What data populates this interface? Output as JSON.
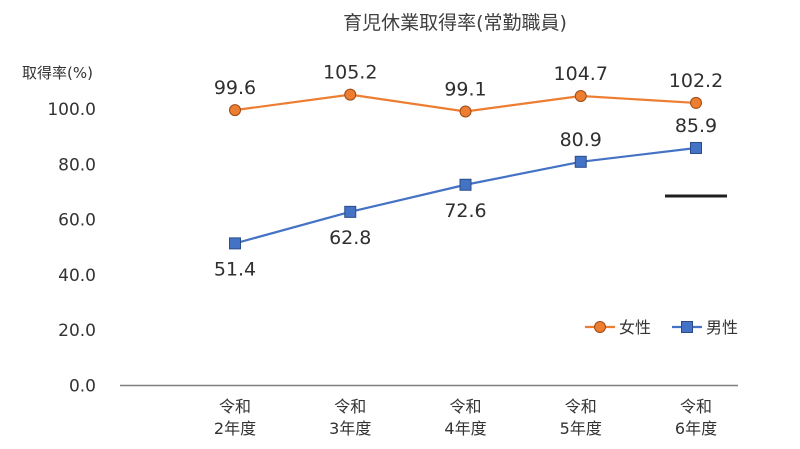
{
  "chart_data": {
    "type": "line",
    "title": "育児休業取得率(常勤職員)",
    "ylabel": "取得率(%)",
    "xlabel": "",
    "ylim": [
      0,
      100
    ],
    "yticks": [
      "0.0",
      "20.0",
      "40.0",
      "60.0",
      "80.0",
      "100.0"
    ],
    "categories": [
      [
        "令和",
        "2年度"
      ],
      [
        "令和",
        "3年度"
      ],
      [
        "令和",
        "4年度"
      ],
      [
        "令和",
        "5年度"
      ],
      [
        "令和",
        "6年度"
      ]
    ],
    "series": [
      {
        "name": "女性",
        "values": [
          99.6,
          105.2,
          99.1,
          104.7,
          102.2
        ],
        "labels": [
          "99.6",
          "105.2",
          "99.1",
          "104.7",
          "102.2"
        ],
        "color": "#ED7D31",
        "marker": "circle"
      },
      {
        "name": "男性",
        "values": [
          51.4,
          62.8,
          72.6,
          80.9,
          85.9
        ],
        "labels": [
          "51.4",
          "62.8",
          "72.6",
          "80.9",
          "85.9"
        ],
        "color": "#4472C4",
        "marker": "square"
      }
    ],
    "legend_position": "bottom-right",
    "grid": false,
    "annotations": [
      {
        "type": "underline",
        "series": 1,
        "point": 4
      }
    ]
  }
}
